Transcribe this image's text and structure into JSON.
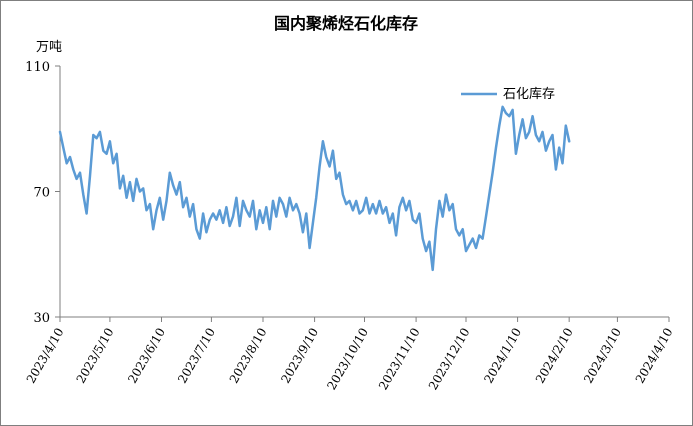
{
  "chart_data": {
    "type": "line",
    "title": "国内聚烯烃石化库存",
    "ylabel": "万吨",
    "ylim": [
      30,
      110
    ],
    "yticks": [
      30,
      70,
      110
    ],
    "x_tick_labels": [
      "2023/4/10",
      "2023/5/10",
      "2023/6/10",
      "2023/7/10",
      "2023/8/10",
      "2023/9/10",
      "2023/10/10",
      "2023/11/10",
      "2023/12/10",
      "2024/1/10",
      "2024/2/10",
      "2024/3/10",
      "2024/4/10"
    ],
    "x_range": [
      "2023/4/10",
      "2024/4/10"
    ],
    "legend_position": "top-right",
    "series": [
      {
        "name": "石化库存",
        "color": "#5b9bd5",
        "points": [
          [
            "2023/4/10",
            89
          ],
          [
            "2023/4/12",
            84
          ],
          [
            "2023/4/14",
            79
          ],
          [
            "2023/4/16",
            81
          ],
          [
            "2023/4/18",
            77
          ],
          [
            "2023/4/20",
            74
          ],
          [
            "2023/4/22",
            76
          ],
          [
            "2023/4/24",
            69
          ],
          [
            "2023/4/26",
            63
          ],
          [
            "2023/4/28",
            75
          ],
          [
            "2023/4/30",
            88
          ],
          [
            "2023/5/2",
            87
          ],
          [
            "2023/5/4",
            89
          ],
          [
            "2023/5/6",
            83
          ],
          [
            "2023/5/8",
            82
          ],
          [
            "2023/5/10",
            86
          ],
          [
            "2023/5/12",
            79
          ],
          [
            "2023/5/14",
            82
          ],
          [
            "2023/5/16",
            71
          ],
          [
            "2023/5/18",
            75
          ],
          [
            "2023/5/20",
            68
          ],
          [
            "2023/5/22",
            73
          ],
          [
            "2023/5/24",
            67
          ],
          [
            "2023/5/26",
            74
          ],
          [
            "2023/5/28",
            70
          ],
          [
            "2023/5/30",
            71
          ],
          [
            "2023/6/1",
            64
          ],
          [
            "2023/6/3",
            66
          ],
          [
            "2023/6/5",
            58
          ],
          [
            "2023/6/7",
            64
          ],
          [
            "2023/6/9",
            68
          ],
          [
            "2023/6/11",
            61
          ],
          [
            "2023/6/13",
            67
          ],
          [
            "2023/6/15",
            76
          ],
          [
            "2023/6/17",
            72
          ],
          [
            "2023/6/19",
            69
          ],
          [
            "2023/6/21",
            73
          ],
          [
            "2023/6/23",
            65
          ],
          [
            "2023/6/25",
            68
          ],
          [
            "2023/6/27",
            62
          ],
          [
            "2023/6/29",
            66
          ],
          [
            "2023/7/1",
            58
          ],
          [
            "2023/7/3",
            55
          ],
          [
            "2023/7/5",
            63
          ],
          [
            "2023/7/7",
            57
          ],
          [
            "2023/7/9",
            61
          ],
          [
            "2023/7/11",
            63
          ],
          [
            "2023/7/13",
            61
          ],
          [
            "2023/7/15",
            64
          ],
          [
            "2023/7/17",
            60
          ],
          [
            "2023/7/19",
            65
          ],
          [
            "2023/7/21",
            59
          ],
          [
            "2023/7/23",
            62
          ],
          [
            "2023/7/25",
            68
          ],
          [
            "2023/7/27",
            59
          ],
          [
            "2023/7/29",
            67
          ],
          [
            "2023/7/31",
            64
          ],
          [
            "2023/8/2",
            62
          ],
          [
            "2023/8/4",
            67
          ],
          [
            "2023/8/6",
            58
          ],
          [
            "2023/8/8",
            64
          ],
          [
            "2023/8/10",
            60
          ],
          [
            "2023/8/12",
            65
          ],
          [
            "2023/8/14",
            58
          ],
          [
            "2023/8/16",
            67
          ],
          [
            "2023/8/18",
            62
          ],
          [
            "2023/8/20",
            68
          ],
          [
            "2023/8/22",
            66
          ],
          [
            "2023/8/24",
            62
          ],
          [
            "2023/8/26",
            68
          ],
          [
            "2023/8/28",
            64
          ],
          [
            "2023/8/30",
            66
          ],
          [
            "2023/9/1",
            63
          ],
          [
            "2023/9/3",
            57
          ],
          [
            "2023/9/5",
            63
          ],
          [
            "2023/9/7",
            52
          ],
          [
            "2023/9/9",
            60
          ],
          [
            "2023/9/11",
            68
          ],
          [
            "2023/9/13",
            78
          ],
          [
            "2023/9/15",
            86
          ],
          [
            "2023/9/17",
            81
          ],
          [
            "2023/9/19",
            78
          ],
          [
            "2023/9/21",
            83
          ],
          [
            "2023/9/23",
            74
          ],
          [
            "2023/9/25",
            76
          ],
          [
            "2023/9/27",
            69
          ],
          [
            "2023/9/29",
            66
          ],
          [
            "2023/10/1",
            67
          ],
          [
            "2023/10/3",
            64
          ],
          [
            "2023/10/5",
            67
          ],
          [
            "2023/10/7",
            63
          ],
          [
            "2023/10/9",
            64
          ],
          [
            "2023/10/11",
            68
          ],
          [
            "2023/10/13",
            63
          ],
          [
            "2023/10/15",
            66
          ],
          [
            "2023/10/17",
            63
          ],
          [
            "2023/10/19",
            67
          ],
          [
            "2023/10/21",
            63
          ],
          [
            "2023/10/23",
            65
          ],
          [
            "2023/10/25",
            60
          ],
          [
            "2023/10/27",
            63
          ],
          [
            "2023/10/29",
            56
          ],
          [
            "2023/10/31",
            65
          ],
          [
            "2023/11/2",
            68
          ],
          [
            "2023/11/4",
            64
          ],
          [
            "2023/11/6",
            67
          ],
          [
            "2023/11/8",
            61
          ],
          [
            "2023/11/10",
            60
          ],
          [
            "2023/11/12",
            63
          ],
          [
            "2023/11/14",
            55
          ],
          [
            "2023/11/16",
            51
          ],
          [
            "2023/11/18",
            54
          ],
          [
            "2023/11/20",
            45
          ],
          [
            "2023/11/22",
            58
          ],
          [
            "2023/11/24",
            67
          ],
          [
            "2023/11/26",
            62
          ],
          [
            "2023/11/28",
            69
          ],
          [
            "2023/11/30",
            64
          ],
          [
            "2023/12/2",
            66
          ],
          [
            "2023/12/4",
            58
          ],
          [
            "2023/12/6",
            56
          ],
          [
            "2023/12/8",
            58
          ],
          [
            "2023/12/10",
            51
          ],
          [
            "2023/12/12",
            53
          ],
          [
            "2023/12/14",
            55
          ],
          [
            "2023/12/16",
            52
          ],
          [
            "2023/12/18",
            56
          ],
          [
            "2023/12/20",
            55
          ],
          [
            "2023/12/22",
            62
          ],
          [
            "2023/12/24",
            69
          ],
          [
            "2023/12/26",
            76
          ],
          [
            "2023/12/28",
            84
          ],
          [
            "2023/12/30",
            91
          ],
          [
            "2024/1/1",
            97
          ],
          [
            "2024/1/3",
            95
          ],
          [
            "2024/1/5",
            94
          ],
          [
            "2024/1/7",
            96
          ],
          [
            "2024/1/9",
            82
          ],
          [
            "2024/1/11",
            88
          ],
          [
            "2024/1/13",
            93
          ],
          [
            "2024/1/15",
            87
          ],
          [
            "2024/1/17",
            89
          ],
          [
            "2024/1/19",
            94
          ],
          [
            "2024/1/21",
            88
          ],
          [
            "2024/1/23",
            86
          ],
          [
            "2024/1/25",
            89
          ],
          [
            "2024/1/27",
            83
          ],
          [
            "2024/1/29",
            86
          ],
          [
            "2024/1/31",
            88
          ],
          [
            "2024/2/2",
            77
          ],
          [
            "2024/2/4",
            84
          ],
          [
            "2024/2/6",
            79
          ],
          [
            "2024/2/8",
            91
          ],
          [
            "2024/2/10",
            86
          ]
        ]
      }
    ]
  }
}
